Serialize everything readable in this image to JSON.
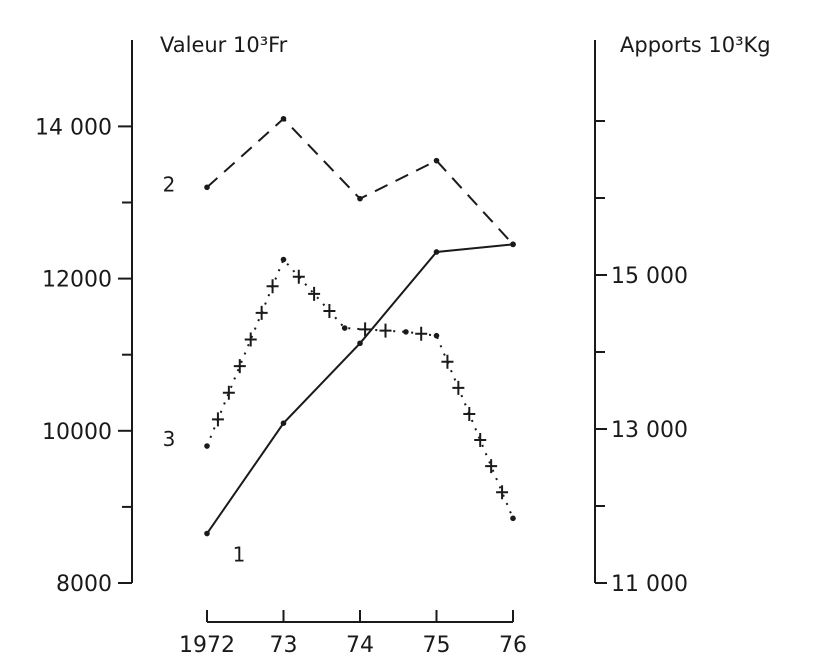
{
  "chart_data": {
    "type": "line",
    "xlabel": "",
    "x_tick_labels": [
      "1972",
      "73",
      "74",
      "75",
      "76"
    ],
    "x": [
      1972,
      1973,
      1974,
      1975,
      1976
    ],
    "left_axis": {
      "label": "Valeur 10³Fr",
      "ylim": [
        8000,
        15000
      ],
      "tick_labels": [
        "8000",
        "10000",
        "12000",
        "14 000"
      ],
      "tick_values": [
        8000,
        10000,
        12000,
        14000
      ],
      "minor_tick_values": [
        9000,
        11000,
        13000
      ]
    },
    "right_axis": {
      "label": "Apports 10³Kg",
      "ylim": [
        11000,
        18000
      ],
      "tick_labels": [
        "11 000",
        "13 000",
        "15 000"
      ],
      "tick_values": [
        11000,
        13000,
        15000
      ],
      "minor_tick_values": [
        12000,
        14000,
        16000,
        17000
      ]
    },
    "series": [
      {
        "name": "1",
        "axis": "left",
        "style": "solid",
        "x": [
          1972,
          1973,
          1974,
          1975,
          1976
        ],
        "values": [
          8650,
          10100,
          11150,
          12350,
          12450
        ]
      },
      {
        "name": "2",
        "axis": "left",
        "style": "dashed",
        "x": [
          1972,
          1973,
          1974,
          1975,
          1976
        ],
        "values": [
          13200,
          14100,
          13050,
          13550,
          12450
        ]
      },
      {
        "name": "3",
        "axis": "left",
        "style": "crosses",
        "x": [
          1972,
          1973,
          1973.8,
          1974.6,
          1975,
          1976
        ],
        "values": [
          9800,
          12250,
          11350,
          11300,
          11250,
          8850
        ]
      }
    ],
    "grid": false,
    "legend": "inline labels",
    "colors": {
      "ink": "#1a1a1a",
      "background": "#ffffff"
    }
  }
}
